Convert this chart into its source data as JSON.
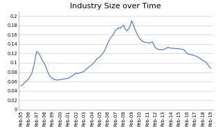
{
  "title": "Industry Size over Time",
  "line_color": "#4472c4",
  "background_color": "#ffffff",
  "ylim": [
    0,
    0.21
  ],
  "yticks": [
    0,
    0.02,
    0.04,
    0.06,
    0.08,
    0.1,
    0.12,
    0.14,
    0.16,
    0.18,
    0.2
  ],
  "ytick_labels": [
    "0",
    "0.02",
    "0.04",
    "0.06",
    "0.08",
    "0.1",
    "0.12",
    "0.14",
    "0.16",
    "0.18",
    "0.2"
  ],
  "xtick_labels": [
    "Feb-95",
    "Feb-96",
    "Feb-97",
    "Feb-98",
    "Feb-99",
    "Feb-00",
    "Feb-01",
    "Feb-02",
    "Feb-03",
    "Feb-04",
    "Feb-05",
    "Feb-06",
    "Feb-07",
    "Feb-08",
    "Feb-09",
    "Feb-10",
    "Feb-11",
    "Feb-12",
    "Feb-13",
    "Feb-14",
    "Feb-15",
    "Feb-16",
    "Feb-17",
    "Feb-18",
    "Feb-19"
  ],
  "title_fontsize": 8,
  "tick_fontsize": 4.8,
  "line_width": 0.8,
  "key_x": [
    0,
    0.3,
    0.6,
    1.0,
    1.4,
    1.7,
    2.0,
    2.15,
    2.3,
    2.5,
    2.7,
    3.0,
    3.3,
    3.6,
    4.0,
    4.3,
    4.6,
    5.0,
    5.4,
    5.7,
    6.0,
    6.3,
    6.6,
    7.0,
    7.2,
    7.4,
    7.6,
    7.8,
    8.0,
    8.3,
    8.6,
    9.0,
    9.3,
    9.6,
    10.0,
    10.3,
    10.6,
    11.0,
    11.3,
    11.6,
    12.0,
    12.2,
    12.4,
    12.6,
    12.8,
    13.0,
    13.1,
    13.2,
    13.4,
    13.6,
    13.8,
    14.0,
    14.1,
    14.2,
    14.4,
    14.6,
    14.8,
    15.0,
    15.3,
    15.6,
    16.0,
    16.3,
    16.6,
    17.0,
    17.3,
    17.6,
    18.0,
    18.3,
    18.6,
    19.0,
    19.3,
    19.6,
    20.0,
    20.3,
    20.6,
    21.0,
    21.3,
    21.6,
    22.0,
    22.3,
    22.6,
    23.0,
    23.3,
    23.6,
    24.0
  ],
  "key_y": [
    0.051,
    0.054,
    0.06,
    0.066,
    0.078,
    0.098,
    0.124,
    0.122,
    0.119,
    0.113,
    0.105,
    0.098,
    0.085,
    0.073,
    0.066,
    0.064,
    0.063,
    0.064,
    0.065,
    0.066,
    0.067,
    0.07,
    0.073,
    0.078,
    0.077,
    0.078,
    0.079,
    0.08,
    0.082,
    0.087,
    0.091,
    0.096,
    0.101,
    0.108,
    0.113,
    0.119,
    0.126,
    0.143,
    0.152,
    0.158,
    0.17,
    0.172,
    0.175,
    0.174,
    0.178,
    0.18,
    0.176,
    0.172,
    0.168,
    0.172,
    0.178,
    0.19,
    0.186,
    0.182,
    0.173,
    0.165,
    0.158,
    0.152,
    0.147,
    0.144,
    0.143,
    0.142,
    0.145,
    0.132,
    0.129,
    0.128,
    0.128,
    0.13,
    0.133,
    0.131,
    0.131,
    0.13,
    0.13,
    0.129,
    0.128,
    0.12,
    0.118,
    0.117,
    0.115,
    0.113,
    0.11,
    0.105,
    0.103,
    0.097,
    0.088
  ]
}
